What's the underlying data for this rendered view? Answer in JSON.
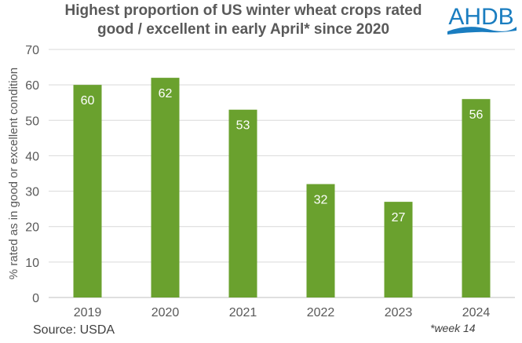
{
  "chart_data": {
    "type": "bar",
    "title": "Highest proportion of US winter wheat crops rated good / excellent in early April* since 2020",
    "title_lines": [
      "Highest proportion of US winter wheat crops rated",
      "good / excellent in early April* since 2020"
    ],
    "categories": [
      "2019",
      "2020",
      "2021",
      "2022",
      "2023",
      "2024"
    ],
    "values": [
      60,
      62,
      53,
      32,
      27,
      56
    ],
    "data_labels": [
      "60",
      "62",
      "53",
      "32",
      "27",
      "56"
    ],
    "xlabel": "",
    "ylabel": "% rated as in good or excellent condition",
    "ylim": [
      0,
      70
    ],
    "yticks": [
      "0",
      "10",
      "20",
      "30",
      "40",
      "50",
      "60",
      "70"
    ],
    "grid": true,
    "bar_color": "#6AA12E"
  },
  "source": "Source: USDA",
  "footnote": "*week 14",
  "logo": {
    "text": "AHDB",
    "color": "#1A7DC0"
  }
}
